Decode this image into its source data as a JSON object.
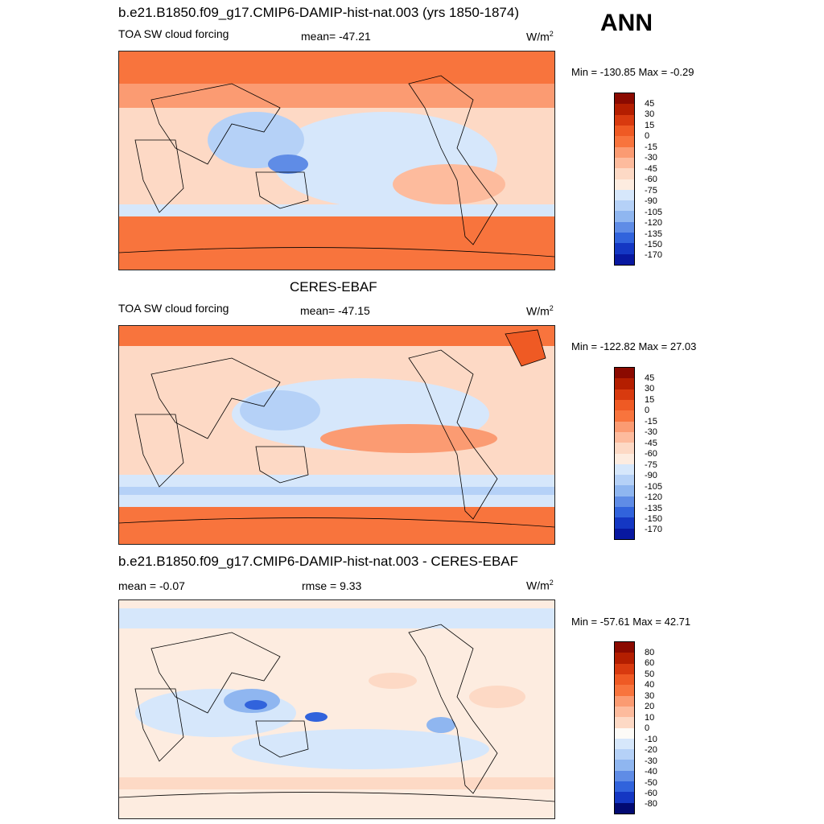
{
  "season": "ANN",
  "panels": [
    {
      "title": "b.e21.B1850.f09_g17.CMIP6-DAMIP-hist-nat.003 (yrs 1850-1874)",
      "left_label": "TOA SW cloud forcing",
      "center_label": "mean= -47.21",
      "units": "W/m",
      "units_sup": "2",
      "minmax": "Min = -130.85 Max =  -0.29",
      "colorbar": [
        "45",
        "30",
        "15",
        "0",
        "-15",
        "-30",
        "-45",
        "-60",
        "-75",
        "-90",
        "-105",
        "-120",
        "-135",
        "-150",
        "-170"
      ]
    },
    {
      "title": "CERES-EBAF",
      "left_label": "TOA SW cloud forcing",
      "center_label": "mean= -47.15",
      "units": "W/m",
      "units_sup": "2",
      "minmax": "Min = -122.82 Max =  27.03",
      "colorbar": [
        "45",
        "30",
        "15",
        "0",
        "-15",
        "-30",
        "-45",
        "-60",
        "-75",
        "-90",
        "-105",
        "-120",
        "-135",
        "-150",
        "-170"
      ]
    },
    {
      "title": "b.e21.B1850.f09_g17.CMIP6-DAMIP-hist-nat.003 - CERES-EBAF",
      "left_label": "mean =  -0.07",
      "center_label": "rmse =   9.33",
      "units": "W/m",
      "units_sup": "2",
      "minmax": "Min = -57.61 Max =  42.71",
      "colorbar": [
        "80",
        "60",
        "50",
        "40",
        "30",
        "20",
        "10",
        "0",
        "-10",
        "-20",
        "-30",
        "-40",
        "-50",
        "-60",
        "-80"
      ]
    }
  ],
  "colors": {
    "levels": [
      "#8b0a00",
      "#b41e00",
      "#d83a0f",
      "#ef5a24",
      "#f8743d",
      "#fb9b72",
      "#fdbb9d",
      "#fdd9c5",
      "#fdece0",
      "#d6e7fb",
      "#b5d1f7",
      "#8fb6f0",
      "#5f8ce6",
      "#3163dc",
      "#1437c3",
      "#0818a0",
      "#020a72"
    ],
    "land_outline": "#000000"
  },
  "panel_bg_colors": [
    "#f8743d",
    "#fb8e5c",
    "#fdece0"
  ]
}
